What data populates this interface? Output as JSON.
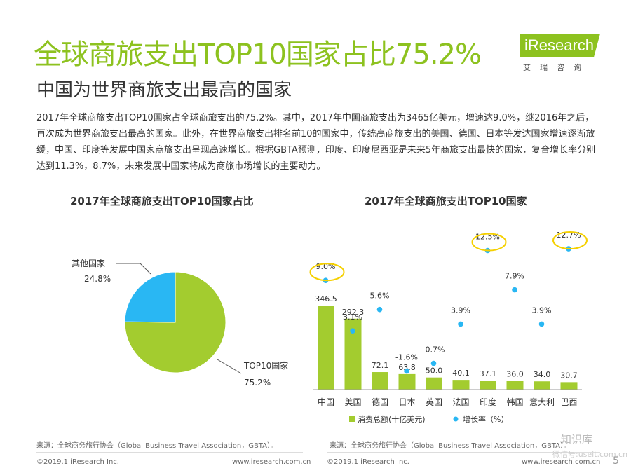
{
  "header": {
    "title": "全球商旅支出TOP10国家占比75.2%",
    "subtitle": "中国为世界商旅支出最高的国家",
    "logo_text": "iResearch",
    "logo_cn": "艾瑞咨询"
  },
  "paragraph": "2017年全球商旅支出TOP10国家占全球商旅支出的75.2%。其中，2017年中国商旅支出为3465亿美元，增速达9.0%，继2016年之后，再次成为世界商旅支出最高的国家。此外，在世界商旅支出排名前10的国家中，传统高商旅支出的美国、德国、日本等发达国家增速逐渐放缓，中国、印度等发展中国家商旅支出呈现高速增长。根据GBTA预测，印度、印度尼西亚是未来5年商旅支出最快的国家，复合增长率分别达到11.3%，8.7%，未来发展中国家将成为商旅市场增长的主要动力。",
  "colors": {
    "accent": "#8dc21f",
    "blue": "#29b7f3",
    "highlight": "#f5d000"
  },
  "chart_data": [
    {
      "type": "pie",
      "title": "2017年全球商旅支出TOP10国家占比",
      "slices": [
        {
          "label": "TOP10国家",
          "value": 75.2,
          "value_text": "75.2%",
          "color": "#a3cc2f"
        },
        {
          "label": "其他国家",
          "value": 24.8,
          "value_text": "24.8%",
          "color": "#29b7f3"
        }
      ]
    },
    {
      "type": "bar",
      "title": "2017年全球商旅支出TOP10国家",
      "categories": [
        "中国",
        "美国",
        "德国",
        "日本",
        "英国",
        "法国",
        "印度",
        "韩国",
        "意大利",
        "巴西"
      ],
      "series": [
        {
          "name": "消费总额(十亿美元)",
          "type": "bar",
          "color": "#a3cc2f",
          "values": [
            346.5,
            292.3,
            72.1,
            63.8,
            50.0,
            40.1,
            37.1,
            36.0,
            34.0,
            30.7
          ],
          "labels": [
            "346.5",
            "292.3",
            "72.1",
            "63.8",
            "50.0",
            "40.1",
            "37.1",
            "36.0",
            "34.0",
            "30.7"
          ]
        },
        {
          "name": "增长率（%）",
          "type": "scatter",
          "color": "#29b7f3",
          "values": [
            9.0,
            3.1,
            5.6,
            -1.6,
            -0.7,
            3.9,
            12.5,
            7.9,
            3.9,
            12.7
          ],
          "labels": [
            "9.0%",
            "3.1%",
            "5.6%",
            "-1.6%",
            "-0.7%",
            "3.9%",
            "12.5%",
            "7.9%",
            "3.9%",
            "12.7%"
          ]
        }
      ],
      "highlighted": [
        "中国",
        "印度",
        "巴西"
      ],
      "legend_position": "bottom"
    }
  ],
  "sources": {
    "left": "来源：全球商务旅行协会（Global Business Travel Association，GBTA）。",
    "right": "来源：全球商务旅行协会（Global Business Travel Association，GBTA）。"
  },
  "footer": {
    "copyright_left": "©2019.1 iResearch Inc.",
    "url_left": "www.iresearch.com.cn",
    "copyright_right": "©2019.1 iResearch Inc.",
    "url_right": "www.iresearch.com.cn",
    "page": "5"
  },
  "watermark": {
    "name": "知识库",
    "sub": "微信号:useit.com.cn"
  }
}
